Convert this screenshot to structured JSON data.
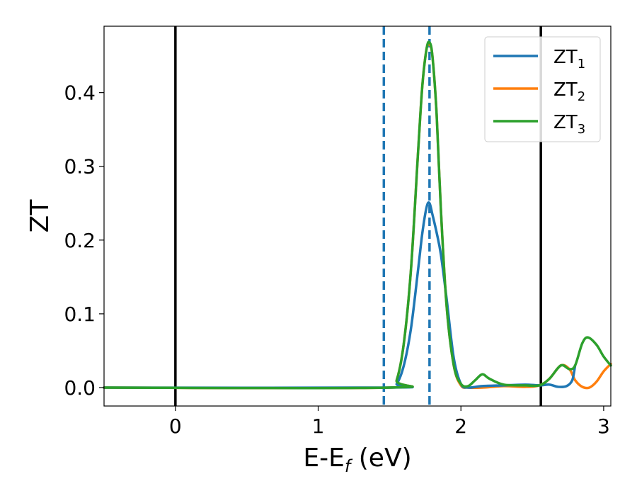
{
  "chart_data": {
    "type": "line",
    "title": "",
    "xlabel": "E-E",
    "xlabel_sub": "f",
    "xlabel_unit": "(eV)",
    "ylabel": "ZT",
    "xlim": [
      -0.5,
      3.05
    ],
    "ylim": [
      -0.025,
      0.49
    ],
    "xticks": [
      0,
      1,
      2,
      3
    ],
    "xtick_labels": [
      "0",
      "1",
      "2",
      "3"
    ],
    "yticks": [
      0.0,
      0.1,
      0.2,
      0.3,
      0.4
    ],
    "ytick_labels": [
      "0.0",
      "0.1",
      "0.2",
      "0.3",
      "0.4"
    ],
    "grid": false,
    "legend_position": "top-right",
    "vlines": [
      {
        "x": 0.0,
        "style": "solid",
        "color": "#000000"
      },
      {
        "x": 2.56,
        "style": "solid",
        "color": "#000000"
      },
      {
        "x": 1.46,
        "style": "dashed",
        "color": "#1f77b4"
      },
      {
        "x": 1.78,
        "style": "dashed",
        "color": "#1f77b4"
      }
    ],
    "series": [
      {
        "name": "ZT",
        "name_sub": "1",
        "color": "#1f77b4",
        "x": [
          -0.5,
          1.5,
          1.55,
          1.6,
          1.65,
          1.7,
          1.73,
          1.76,
          1.78,
          1.8,
          1.83,
          1.86,
          1.9,
          1.95,
          2.0,
          2.05,
          2.15,
          2.3,
          2.45,
          2.55,
          2.62,
          2.68,
          2.74,
          2.78,
          2.8
        ],
        "y": [
          0.0,
          0.0,
          0.005,
          0.03,
          0.08,
          0.16,
          0.21,
          0.245,
          0.25,
          0.235,
          0.21,
          0.18,
          0.12,
          0.04,
          0.005,
          0.0,
          0.002,
          0.003,
          0.004,
          0.003,
          0.004,
          0.001,
          0.002,
          0.01,
          0.03
        ]
      },
      {
        "name": "ZT",
        "name_sub": "2",
        "color": "#ff7f0e",
        "x": [
          -0.5,
          1.5,
          1.55,
          1.6,
          1.65,
          1.7,
          1.73,
          1.76,
          1.78,
          1.8,
          1.83,
          1.86,
          1.9,
          1.95,
          2.0,
          2.05,
          2.15,
          2.3,
          2.45,
          2.55,
          2.62,
          2.7,
          2.76,
          2.8,
          2.85,
          2.9,
          2.95,
          3.0,
          3.05
        ],
        "y": [
          0.0,
          0.0,
          0.01,
          0.06,
          0.16,
          0.32,
          0.41,
          0.46,
          0.465,
          0.45,
          0.37,
          0.24,
          0.11,
          0.03,
          0.003,
          0.0,
          0.0,
          0.002,
          0.001,
          0.003,
          0.012,
          0.03,
          0.025,
          0.01,
          0.001,
          0.0,
          0.008,
          0.022,
          0.032
        ]
      },
      {
        "name": "ZT",
        "name_sub": "3",
        "color": "#2ca02c",
        "x": [
          -0.5,
          1.5,
          1.55,
          1.6,
          1.65,
          1.7,
          1.73,
          1.76,
          1.78,
          1.8,
          1.83,
          1.86,
          1.9,
          1.95,
          2.0,
          2.05,
          2.1,
          2.15,
          2.2,
          2.3,
          2.45,
          2.55,
          2.62,
          2.7,
          2.76,
          2.8,
          2.85,
          2.89,
          2.95,
          3.0,
          3.05
        ],
        "y": [
          0.0,
          0.0,
          0.01,
          0.06,
          0.16,
          0.32,
          0.41,
          0.46,
          0.468,
          0.45,
          0.37,
          0.24,
          0.11,
          0.03,
          0.005,
          0.002,
          0.01,
          0.018,
          0.012,
          0.004,
          0.003,
          0.003,
          0.012,
          0.03,
          0.025,
          0.03,
          0.06,
          0.068,
          0.058,
          0.042,
          0.03
        ]
      }
    ]
  }
}
